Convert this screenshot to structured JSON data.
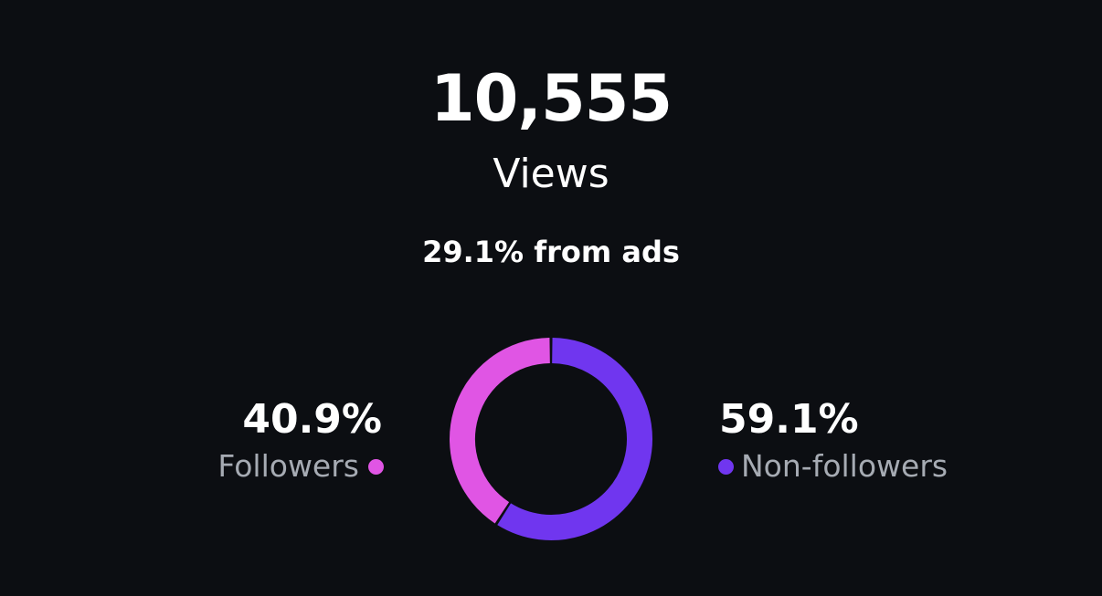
{
  "summary": {
    "total": "10,555",
    "metric_label": "Views",
    "ads_note": "29.1% from ads"
  },
  "legend": {
    "left": {
      "percent": "40.9%",
      "label": "Followers"
    },
    "right": {
      "percent": "59.1%",
      "label": "Non-followers"
    }
  },
  "chart_data": {
    "type": "pie",
    "categories": [
      "Non-followers",
      "Followers"
    ],
    "values": [
      59.1,
      40.9
    ],
    "colors": [
      "#7036ef",
      "#e055e4"
    ],
    "style": "donut",
    "background": "#0c0e12"
  }
}
